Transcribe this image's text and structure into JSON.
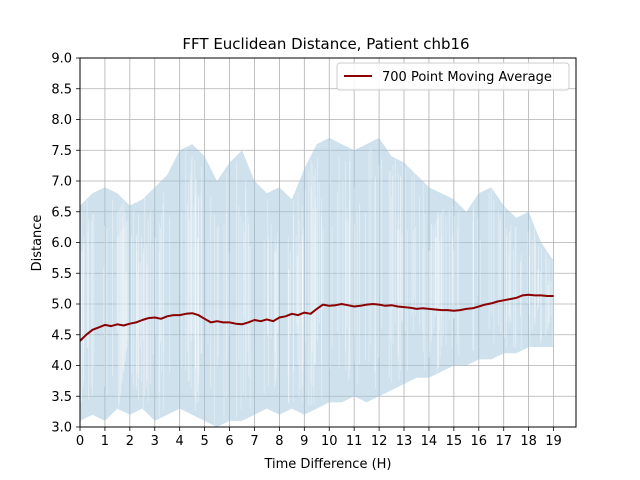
{
  "chart_data": {
    "type": "line",
    "title": "FFT Euclidean Distance, Patient chb16",
    "xlabel": "Time Difference (H)",
    "ylabel": "Distance",
    "xlim": [
      0,
      19.9
    ],
    "ylim": [
      3.0,
      9.0
    ],
    "xticks": [
      0,
      1,
      2,
      3,
      4,
      5,
      6,
      7,
      8,
      9,
      10,
      11,
      12,
      13,
      14,
      15,
      16,
      17,
      18,
      19
    ],
    "yticks": [
      "3.0",
      "3.5",
      "4.0",
      "4.5",
      "5.0",
      "5.5",
      "6.0",
      "6.5",
      "7.0",
      "7.5",
      "8.0",
      "8.5",
      "9.0"
    ],
    "grid": true,
    "legend": {
      "placement": "top-right"
    },
    "colors": {
      "raw": "#9ec3dc",
      "average": "#8b0000",
      "grid": "#b0b0b0"
    },
    "series": [
      {
        "name": "",
        "style": "band",
        "description_only": false,
        "x": [
          0,
          0.5,
          1,
          1.5,
          2,
          2.5,
          3,
          3.5,
          4,
          4.5,
          5,
          5.5,
          6,
          6.5,
          7,
          7.5,
          8,
          8.5,
          9,
          9.5,
          10,
          10.5,
          11,
          11.5,
          12,
          12.5,
          13,
          13.5,
          14,
          14.5,
          15,
          15.5,
          16,
          16.5,
          17,
          17.5,
          18,
          18.5,
          19
        ],
        "upper": [
          6.6,
          6.8,
          6.9,
          6.8,
          6.6,
          6.7,
          6.9,
          7.1,
          7.5,
          7.6,
          7.4,
          7.0,
          7.3,
          7.5,
          7.0,
          6.8,
          6.9,
          6.7,
          7.2,
          7.6,
          7.7,
          7.6,
          7.5,
          7.6,
          7.7,
          7.4,
          7.3,
          7.1,
          6.9,
          6.8,
          6.7,
          6.5,
          6.8,
          6.9,
          6.6,
          6.4,
          6.5,
          6.0,
          5.7
        ],
        "lower": [
          3.1,
          3.2,
          3.1,
          3.3,
          3.2,
          3.3,
          3.1,
          3.2,
          3.3,
          3.2,
          3.1,
          3.0,
          3.1,
          3.1,
          3.2,
          3.3,
          3.2,
          3.3,
          3.2,
          3.3,
          3.4,
          3.4,
          3.5,
          3.4,
          3.5,
          3.6,
          3.7,
          3.8,
          3.8,
          3.9,
          4.0,
          4.0,
          4.1,
          4.1,
          4.2,
          4.2,
          4.3,
          4.3,
          4.3
        ]
      },
      {
        "name": "700 Point Moving Average",
        "style": "line",
        "x": [
          0,
          0.25,
          0.5,
          0.75,
          1,
          1.25,
          1.5,
          1.75,
          2,
          2.25,
          2.5,
          2.75,
          3,
          3.25,
          3.5,
          3.75,
          4,
          4.25,
          4.5,
          4.75,
          5,
          5.25,
          5.5,
          5.75,
          6,
          6.25,
          6.5,
          6.75,
          7,
          7.25,
          7.5,
          7.75,
          8,
          8.25,
          8.5,
          8.75,
          9,
          9.25,
          9.5,
          9.75,
          10,
          10.25,
          10.5,
          10.75,
          11,
          11.25,
          11.5,
          11.75,
          12,
          12.25,
          12.5,
          12.75,
          13,
          13.25,
          13.5,
          13.75,
          14,
          14.25,
          14.5,
          14.75,
          15,
          15.25,
          15.5,
          15.75,
          16,
          16.25,
          16.5,
          16.75,
          17,
          17.25,
          17.5,
          17.75,
          18,
          18.25,
          18.5,
          18.75,
          19
        ],
        "y": [
          4.4,
          4.5,
          4.58,
          4.62,
          4.66,
          4.64,
          4.67,
          4.65,
          4.68,
          4.7,
          4.74,
          4.77,
          4.78,
          4.76,
          4.8,
          4.82,
          4.82,
          4.84,
          4.85,
          4.82,
          4.76,
          4.7,
          4.72,
          4.7,
          4.7,
          4.68,
          4.67,
          4.7,
          4.74,
          4.72,
          4.75,
          4.72,
          4.78,
          4.8,
          4.84,
          4.82,
          4.86,
          4.84,
          4.92,
          4.99,
          4.97,
          4.98,
          5.0,
          4.98,
          4.96,
          4.97,
          4.99,
          5.0,
          4.99,
          4.97,
          4.98,
          4.96,
          4.95,
          4.94,
          4.92,
          4.93,
          4.92,
          4.91,
          4.9,
          4.9,
          4.89,
          4.9,
          4.92,
          4.93,
          4.96,
          4.99,
          5.01,
          5.04,
          5.06,
          5.08,
          5.1,
          5.14,
          5.15,
          5.14,
          5.14,
          5.13,
          5.13
        ]
      }
    ]
  }
}
